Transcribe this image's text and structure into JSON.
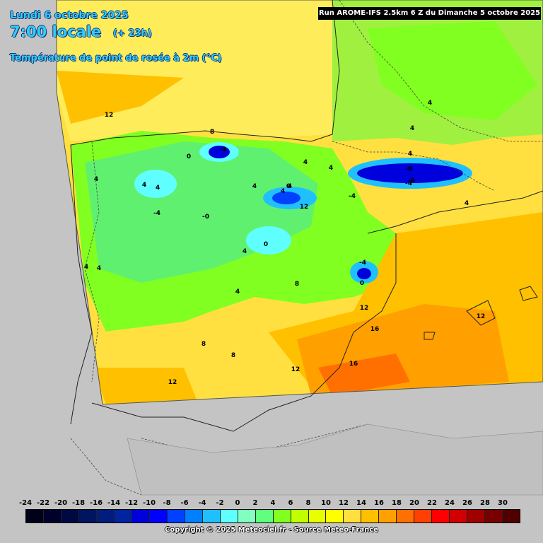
{
  "header": {
    "date": "Lundi 6 octobre 2025",
    "time": "7:00 locale",
    "lead": "(+ 23h)",
    "parameter": "Température de point de rosée à 2m (°C)"
  },
  "run_info": "Run AROME-IFS 2.5km 6 Z du Dimanche 5 octobre 2025",
  "copyright": "Copyright © 2025 Meteociel.fr - Source Meteo-France",
  "legend": {
    "ticks": [
      "-24",
      "-22",
      "-20",
      "-18",
      "-16",
      "-14",
      "-12",
      "-10",
      "-8",
      "-6",
      "-4",
      "-2",
      "0",
      "2",
      "4",
      "6",
      "8",
      "10",
      "12",
      "14",
      "16",
      "18",
      "20",
      "22",
      "24",
      "26",
      "28",
      "30"
    ],
    "colors": [
      "#000018",
      "#00002c",
      "#000844",
      "#001460",
      "#001c7c",
      "#0024a0",
      "#0000dc",
      "#0000ff",
      "#0040ff",
      "#0080ff",
      "#20c0ff",
      "#60ffff",
      "#80ffc0",
      "#60ff80",
      "#80ff20",
      "#c0ff00",
      "#e8ff00",
      "#ffff00",
      "#ffe040",
      "#ffc000",
      "#ffa000",
      "#ff7000",
      "#ff4000",
      "#ff0000",
      "#d00000",
      "#a00000",
      "#780000",
      "#500000"
    ]
  },
  "contour_labels": [
    "12",
    "8",
    "-4",
    "0",
    "4",
    "4",
    "-4",
    "-0",
    "4",
    "4",
    "4",
    "4",
    "0",
    "-4",
    "4",
    "4",
    "4",
    "-4",
    "-8",
    "-4",
    "4",
    "4",
    "0",
    "-4",
    "0",
    "4",
    "8",
    "12",
    "16",
    "12",
    "16",
    "12",
    "8",
    "8",
    "12",
    "4",
    "4",
    "4",
    "4",
    "12"
  ],
  "colors": {
    "background": "#c4c4c4",
    "header_text": "#33ccff",
    "land_outside": "#c8c8c8",
    "field_cold_blue": "#0000dc",
    "field_green": "#80ff20",
    "field_yellow": "#ffe040",
    "field_orange": "#ffa000"
  }
}
